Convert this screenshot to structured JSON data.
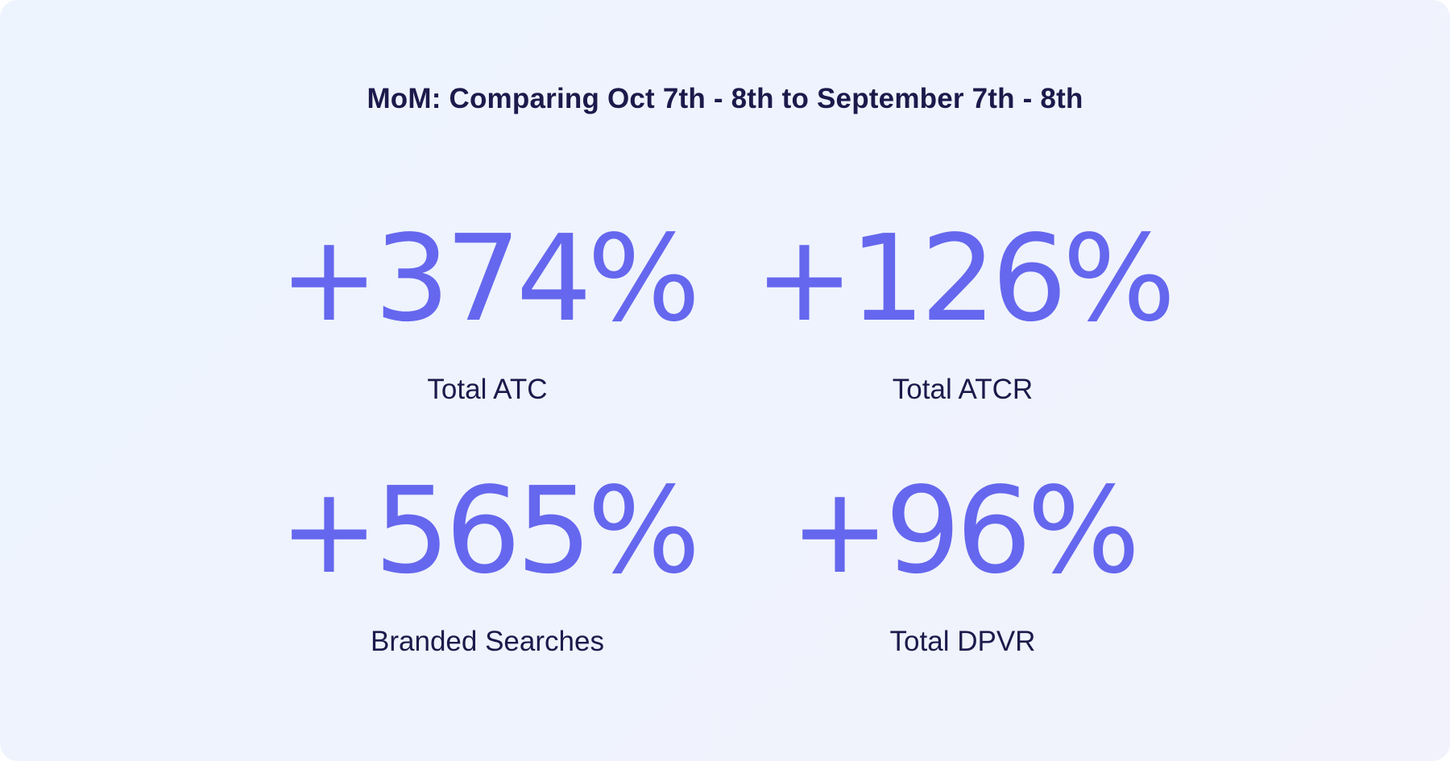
{
  "title": "MoM: Comparing Oct 7th - 8th to September 7th - 8th",
  "metrics": [
    {
      "value": "+374%",
      "label": "Total ATC"
    },
    {
      "value": "+126%",
      "label": "Total ATCR"
    },
    {
      "value": "+565%",
      "label": "Branded Searches"
    },
    {
      "value": "+96%",
      "label": "Total DPVR"
    }
  ],
  "colors": {
    "value": "#6567ee",
    "text": "#1b1a4b",
    "background": "#eef3fd"
  }
}
